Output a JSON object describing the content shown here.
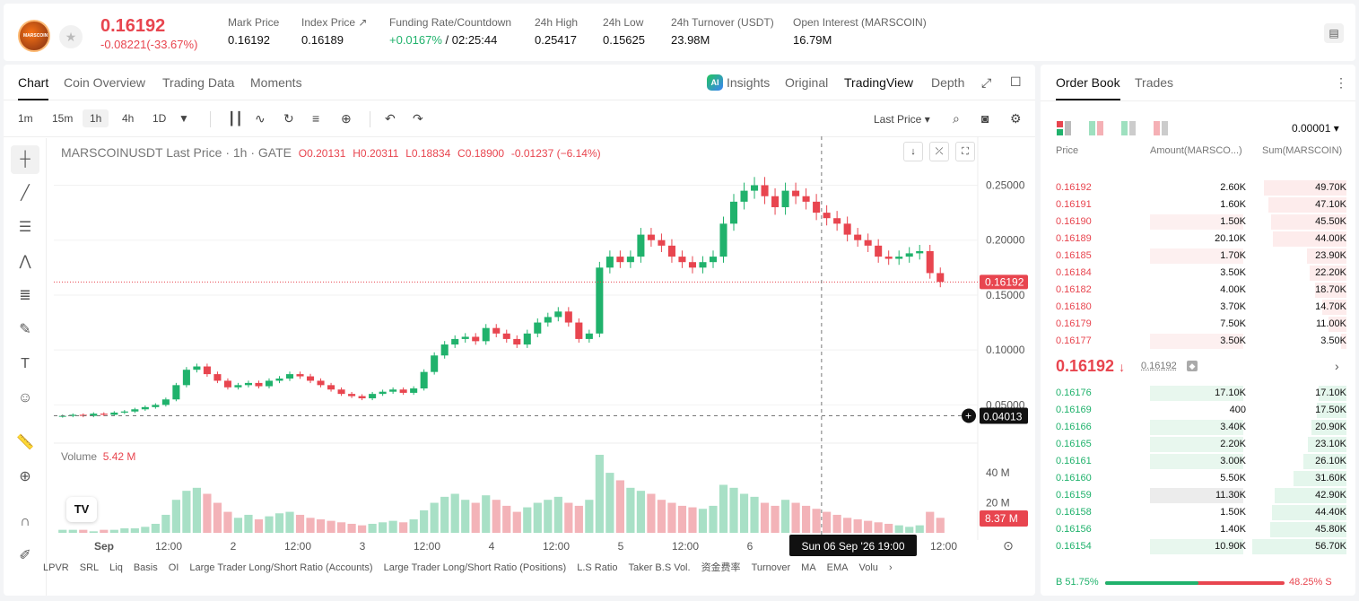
{
  "ticker": {
    "coin_logo_text": "MARSCOIN",
    "last_price": "0.16192",
    "change": "-0.08221(-33.67%)",
    "stats": [
      {
        "label": "Mark Price",
        "value": "0.16192"
      },
      {
        "label": "Index Price ↗",
        "value": "0.16189"
      },
      {
        "label": "Funding Rate/Countdown",
        "value_green": "+0.0167%",
        "value": " / 02:25:44"
      },
      {
        "label": "24h High",
        "value": "0.25417"
      },
      {
        "label": "24h Low",
        "value": "0.15625"
      },
      {
        "label": "24h Turnover (USDT)",
        "value": "23.98M"
      },
      {
        "label": "Open Interest (MARSCOIN)",
        "value": "16.79M"
      }
    ]
  },
  "chart_tabs": [
    "Chart",
    "Coin Overview",
    "Trading Data",
    "Moments"
  ],
  "view_tabs": {
    "insights": "Insights",
    "original": "Original",
    "tradingview": "TradingView",
    "depth": "Depth"
  },
  "intervals": [
    "1m",
    "15m",
    "1h",
    "4h",
    "1D"
  ],
  "price_source": "Last Price",
  "legend": {
    "title": "MARSCOINUSDT Last Price · 1h · GATE",
    "o": "O0.20131",
    "h": "H0.20311",
    "l": "L0.18834",
    "c": "C0.18900",
    "chg": "-0.01237 (−6.14%)"
  },
  "volume_legend": {
    "label": "Volume",
    "value": "5.42 M"
  },
  "price_labels": {
    "current": "0.16192",
    "cursor": "0.04013",
    "vol_current": "8.37 M",
    "crosshair_time": "Sun 06 Sep '26   19:00"
  },
  "bottom_indicators": [
    "LPVR",
    "SRL",
    "Liq",
    "Basis",
    "OI",
    "Large Trader Long/Short Ratio (Accounts)",
    "Large Trader Long/Short Ratio (Positions)",
    "L.S Ratio",
    "Taker B.S Vol.",
    "资金费率",
    "Turnover",
    "MA",
    "EMA",
    "Volu"
  ],
  "chart_data": {
    "type": "candlestick",
    "title": "MARSCOINUSDT Last Price · 1h · GATE",
    "y_ticks": [
      "0.25000",
      "0.20000",
      "0.15000",
      "0.10000",
      "0.05000"
    ],
    "vol_ticks": [
      "40 M",
      "20 M"
    ],
    "x_ticks": [
      "Sep",
      "12:00",
      "2",
      "12:00",
      "3",
      "12:00",
      "4",
      "12:00",
      "5",
      "12:00",
      "6",
      "12:00"
    ],
    "ylim": [
      0.025,
      0.27
    ],
    "close_series": [
      0.04,
      0.041,
      0.04,
      0.042,
      0.041,
      0.043,
      0.044,
      0.046,
      0.048,
      0.05,
      0.055,
      0.068,
      0.082,
      0.085,
      0.078,
      0.072,
      0.066,
      0.068,
      0.07,
      0.067,
      0.072,
      0.074,
      0.078,
      0.076,
      0.072,
      0.068,
      0.064,
      0.06,
      0.058,
      0.056,
      0.06,
      0.062,
      0.064,
      0.061,
      0.065,
      0.08,
      0.095,
      0.105,
      0.11,
      0.112,
      0.108,
      0.12,
      0.115,
      0.11,
      0.105,
      0.115,
      0.125,
      0.13,
      0.135,
      0.125,
      0.11,
      0.115,
      0.175,
      0.185,
      0.18,
      0.185,
      0.205,
      0.2,
      0.195,
      0.185,
      0.18,
      0.175,
      0.18,
      0.185,
      0.215,
      0.235,
      0.245,
      0.25,
      0.24,
      0.23,
      0.245,
      0.24,
      0.235,
      0.225,
      0.22,
      0.215,
      0.205,
      0.2,
      0.195,
      0.185,
      0.183,
      0.185,
      0.188,
      0.19,
      0.17,
      0.162
    ],
    "volume_series": [
      2,
      2,
      2,
      1,
      2,
      2,
      3,
      3,
      4,
      6,
      12,
      22,
      28,
      30,
      26,
      20,
      14,
      10,
      12,
      9,
      11,
      13,
      14,
      12,
      10,
      9,
      8,
      7,
      6,
      5,
      6,
      7,
      8,
      7,
      9,
      15,
      20,
      24,
      26,
      22,
      20,
      25,
      22,
      18,
      14,
      17,
      20,
      22,
      24,
      20,
      18,
      22,
      52,
      40,
      35,
      30,
      28,
      26,
      22,
      20,
      18,
      17,
      16,
      18,
      32,
      30,
      26,
      24,
      20,
      18,
      22,
      20,
      18,
      16,
      14,
      12,
      10,
      9,
      8,
      7,
      6,
      5,
      4,
      5,
      14,
      10
    ]
  },
  "order_book": {
    "tabs": [
      "Order Book",
      "Trades"
    ],
    "precision": "0.00001",
    "headers": {
      "price": "Price",
      "amount": "Amount(MARSCO...)",
      "sum": "Sum(MARSCOIN)"
    },
    "asks": [
      {
        "price": "0.16192",
        "amount": "2.60K",
        "sum": "49.70K",
        "sum_pct": 0.88,
        "amt_pct": 0
      },
      {
        "price": "0.16191",
        "amount": "1.60K",
        "sum": "47.10K",
        "sum_pct": 0.83,
        "amt_pct": 0
      },
      {
        "price": "0.16190",
        "amount": "1.50K",
        "sum": "45.50K",
        "sum_pct": 0.8,
        "amt_pct": 0.44
      },
      {
        "price": "0.16189",
        "amount": "20.10K",
        "sum": "44.00K",
        "sum_pct": 0.78,
        "amt_pct": 0
      },
      {
        "price": "0.16185",
        "amount": "1.70K",
        "sum": "23.90K",
        "sum_pct": 0.42,
        "amt_pct": 0.44
      },
      {
        "price": "0.16184",
        "amount": "3.50K",
        "sum": "22.20K",
        "sum_pct": 0.39,
        "amt_pct": 0
      },
      {
        "price": "0.16182",
        "amount": "4.00K",
        "sum": "18.70K",
        "sum_pct": 0.33,
        "amt_pct": 0
      },
      {
        "price": "0.16180",
        "amount": "3.70K",
        "sum": "14.70K",
        "sum_pct": 0.26,
        "amt_pct": 0
      },
      {
        "price": "0.16179",
        "amount": "7.50K",
        "sum": "11.00K",
        "sum_pct": 0.19,
        "amt_pct": 0
      },
      {
        "price": "0.16177",
        "amount": "3.50K",
        "sum": "3.50K",
        "sum_pct": 0.06,
        "amt_pct": 0.44
      }
    ],
    "mid_price": "0.16192",
    "mid_arrow": "↓",
    "mark_price": "0.16192",
    "bids": [
      {
        "price": "0.16176",
        "amount": "17.10K",
        "sum": "17.10K",
        "sum_pct": 0.3,
        "amt_pct": 0.44
      },
      {
        "price": "0.16169",
        "amount": "400",
        "sum": "17.50K",
        "sum_pct": 0.31,
        "amt_pct": 0
      },
      {
        "price": "0.16166",
        "amount": "3.40K",
        "sum": "20.90K",
        "sum_pct": 0.37,
        "amt_pct": 0.44
      },
      {
        "price": "0.16165",
        "amount": "2.20K",
        "sum": "23.10K",
        "sum_pct": 0.41,
        "amt_pct": 0.44
      },
      {
        "price": "0.16161",
        "amount": "3.00K",
        "sum": "26.10K",
        "sum_pct": 0.46,
        "amt_pct": 0.44
      },
      {
        "price": "0.16160",
        "amount": "5.50K",
        "sum": "31.60K",
        "sum_pct": 0.56,
        "amt_pct": 0
      },
      {
        "price": "0.16159",
        "amount": "11.30K",
        "sum": "42.90K",
        "sum_pct": 0.76,
        "amt_pct": 0.44
      },
      {
        "price": "0.16158",
        "amount": "1.50K",
        "sum": "44.40K",
        "sum_pct": 0.79,
        "amt_pct": 0
      },
      {
        "price": "0.16156",
        "amount": "1.40K",
        "sum": "45.80K",
        "sum_pct": 0.81,
        "amt_pct": 0
      },
      {
        "price": "0.16154",
        "amount": "10.90K",
        "sum": "56.70K",
        "sum_pct": 1.0,
        "amt_pct": 0.44
      }
    ],
    "buy_ratio": "B 51.75%",
    "sell_ratio": "48.25% S",
    "buy_pct": 0.5175
  },
  "colors": {
    "up": "#20b26c",
    "down": "#e8454f"
  }
}
